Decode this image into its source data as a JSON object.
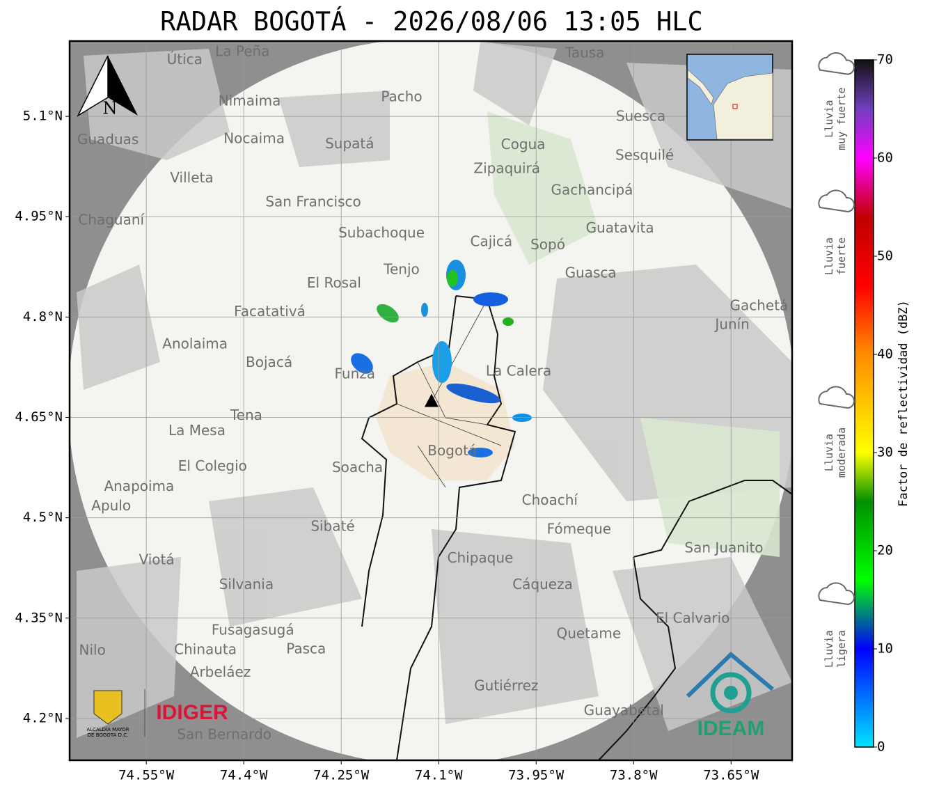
{
  "title": "RADAR BOGOTÁ - 2026/08/06 13:05 HLC",
  "map": {
    "lon_range": [
      -74.668,
      -73.556
    ],
    "lat_range": [
      4.1375,
      5.2125
    ],
    "lon_ticks": [
      {
        "value": -74.55,
        "label": "74.55°W"
      },
      {
        "value": -74.4,
        "label": "74.4°W"
      },
      {
        "value": -74.25,
        "label": "74.25°W"
      },
      {
        "value": -74.1,
        "label": "74.1°W"
      },
      {
        "value": -73.95,
        "label": "73.95°W"
      },
      {
        "value": -73.8,
        "label": "73.8°W"
      },
      {
        "value": -73.65,
        "label": "73.65°W"
      }
    ],
    "lat_ticks": [
      {
        "value": 5.1,
        "label": "5.1°N"
      },
      {
        "value": 4.95,
        "label": "4.95°N"
      },
      {
        "value": 4.8,
        "label": "4.8°N"
      },
      {
        "value": 4.65,
        "label": "4.65°N"
      },
      {
        "value": 4.5,
        "label": "4.5°N"
      },
      {
        "value": 4.35,
        "label": "4.35°N"
      },
      {
        "value": 4.2,
        "label": "4.2°N"
      }
    ],
    "radar": {
      "lon": -74.111,
      "lat": 4.674
    },
    "north": "N",
    "places": [
      {
        "label": "La Peña",
        "lon": -74.402,
        "lat": 5.196
      },
      {
        "label": "Útica",
        "lon": -74.491,
        "lat": 5.184
      },
      {
        "label": "Tausa",
        "lon": -73.875,
        "lat": 5.194
      },
      {
        "label": "Pacho",
        "lon": -74.157,
        "lat": 5.128
      },
      {
        "label": "Nimaima",
        "lon": -74.391,
        "lat": 5.122
      },
      {
        "label": "Suesca",
        "lon": -73.789,
        "lat": 5.099
      },
      {
        "label": "Guaduas",
        "lon": -74.609,
        "lat": 5.064
      },
      {
        "label": "Nocaima",
        "lon": -74.384,
        "lat": 5.066
      },
      {
        "label": "Supatá",
        "lon": -74.237,
        "lat": 5.058
      },
      {
        "label": "Cogua",
        "lon": -73.97,
        "lat": 5.057
      },
      {
        "label": "Sesquilé",
        "lon": -73.783,
        "lat": 5.041
      },
      {
        "label": "Zipaquirá",
        "lon": -73.995,
        "lat": 5.021
      },
      {
        "label": "Villeta",
        "lon": -74.48,
        "lat": 5.007
      },
      {
        "label": "Gachancipá",
        "lon": -73.864,
        "lat": 4.989
      },
      {
        "label": "San Francisco",
        "lon": -74.293,
        "lat": 4.971
      },
      {
        "label": "Chaguaní",
        "lon": -74.604,
        "lat": 4.944
      },
      {
        "label": "Guatavita",
        "lon": -73.821,
        "lat": 4.932
      },
      {
        "label": "Subachoque",
        "lon": -74.188,
        "lat": 4.925
      },
      {
        "label": "Cajicá",
        "lon": -74.019,
        "lat": 4.912
      },
      {
        "label": "Sopó",
        "lon": -73.932,
        "lat": 4.907
      },
      {
        "label": "Tenjo",
        "lon": -74.157,
        "lat": 4.87
      },
      {
        "label": "Guasca",
        "lon": -73.866,
        "lat": 4.865
      },
      {
        "label": "El Rosal",
        "lon": -74.261,
        "lat": 4.85
      },
      {
        "label": "Gachetá",
        "lon": -73.607,
        "lat": 4.816
      },
      {
        "label": "Facatativá",
        "lon": -74.36,
        "lat": 4.807
      },
      {
        "label": "Junín",
        "lon": -73.648,
        "lat": 4.788
      },
      {
        "label": "Anolaima",
        "lon": -74.475,
        "lat": 4.759
      },
      {
        "label": "Bojacá",
        "lon": -74.361,
        "lat": 4.731
      },
      {
        "label": "La Calera",
        "lon": -73.977,
        "lat": 4.718
      },
      {
        "label": "Funza",
        "lon": -74.229,
        "lat": 4.714
      },
      {
        "label": "Tena",
        "lon": -74.396,
        "lat": 4.652
      },
      {
        "label": "La Mesa",
        "lon": -74.472,
        "lat": 4.629
      },
      {
        "label": "Bogotá",
        "lon": -74.079,
        "lat": 4.599
      },
      {
        "label": "El Colegio",
        "lon": -74.448,
        "lat": 4.576
      },
      {
        "label": "Soacha",
        "lon": -74.225,
        "lat": 4.574
      },
      {
        "label": "Anapoima",
        "lon": -74.561,
        "lat": 4.546
      },
      {
        "label": "Apulo",
        "lon": -74.604,
        "lat": 4.517
      },
      {
        "label": "Choachí",
        "lon": -73.929,
        "lat": 4.525
      },
      {
        "label": "Sibaté",
        "lon": -74.263,
        "lat": 4.486
      },
      {
        "label": "Fómeque",
        "lon": -73.884,
        "lat": 4.482
      },
      {
        "label": "San Juanito",
        "lon": -73.661,
        "lat": 4.454
      },
      {
        "label": "Viotá",
        "lon": -74.534,
        "lat": 4.436
      },
      {
        "label": "Chipaque",
        "lon": -74.036,
        "lat": 4.439
      },
      {
        "label": "Silvania",
        "lon": -74.396,
        "lat": 4.399
      },
      {
        "label": "Cáqueza",
        "lon": -73.94,
        "lat": 4.399
      },
      {
        "label": "El Calvario",
        "lon": -73.709,
        "lat": 4.349
      },
      {
        "label": "Fusagasugá",
        "lon": -74.386,
        "lat": 4.331
      },
      {
        "label": "Quetame",
        "lon": -73.869,
        "lat": 4.326
      },
      {
        "label": "Chinauta",
        "lon": -74.459,
        "lat": 4.302
      },
      {
        "label": "Pasca",
        "lon": -74.304,
        "lat": 4.303
      },
      {
        "label": "Nilo",
        "lon": -74.633,
        "lat": 4.301
      },
      {
        "label": "Arbeláez",
        "lon": -74.436,
        "lat": 4.268
      },
      {
        "label": "Gutiérrez",
        "lon": -73.996,
        "lat": 4.248
      },
      {
        "label": "Guayabetal",
        "lon": -73.815,
        "lat": 4.211
      },
      {
        "label": "San Bernardo",
        "lon": -74.43,
        "lat": 4.175
      }
    ]
  },
  "colorbar": {
    "label": "Factor de reflectividad (dBZ)",
    "range": [
      0,
      70
    ],
    "ticks": [
      0,
      10,
      20,
      30,
      40,
      50,
      60,
      70
    ],
    "colormap": [
      {
        "value": 0,
        "color": "#00e5ff"
      },
      {
        "value": 10,
        "color": "#0000ff"
      },
      {
        "value": 17,
        "color": "#00ff00"
      },
      {
        "value": 25,
        "color": "#009000"
      },
      {
        "value": 30,
        "color": "#ffff00"
      },
      {
        "value": 40,
        "color": "#ff8c00"
      },
      {
        "value": 47,
        "color": "#ff0000"
      },
      {
        "value": 54,
        "color": "#c00000"
      },
      {
        "value": 60,
        "color": "#ff00ff"
      },
      {
        "value": 65,
        "color": "#7040c0"
      },
      {
        "value": 70,
        "color": "#111111"
      }
    ],
    "categories": [
      {
        "lines": [
          "Lluvia",
          "muy fuerte"
        ],
        "value": 64
      },
      {
        "lines": [
          "Lluvia",
          "fuerte"
        ],
        "value": 50
      },
      {
        "lines": [
          "Lluvia",
          "moderada"
        ],
        "value": 30
      },
      {
        "lines": [
          "Lluvia",
          "ligera"
        ],
        "value": 10
      }
    ]
  },
  "logos": {
    "alcaldia": [
      "ALCALDÍA MAYOR",
      "DE BOGOTÁ D.C."
    ],
    "idiger": "IDIGER",
    "ideam": "IDEAM"
  }
}
